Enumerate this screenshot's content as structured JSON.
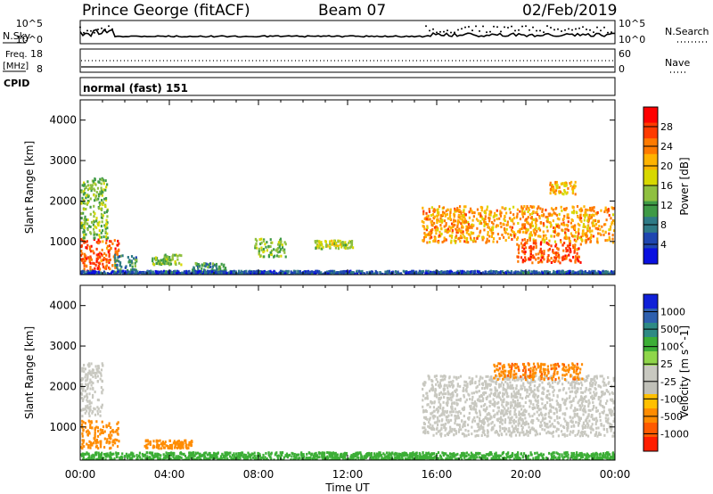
{
  "header": {
    "station": "Prince George (fitACF)",
    "beam": "Beam 07",
    "date": "02/Feb/2019"
  },
  "left_labels": {
    "nsky": "N.Sky",
    "freq_line1": "Freq.",
    "freq_line2": "[MHz]",
    "cpid": "CPID"
  },
  "right_labels": {
    "nsearch": "N.Search",
    "nave": "Nave"
  },
  "cpid_value": "normal (fast) 151",
  "noise_axis": {
    "top": "10^5",
    "bottom": "10^0"
  },
  "freq_axis": {
    "top": "18",
    "bottom": "8"
  },
  "nave_axis": {
    "top": "60",
    "bottom": "0"
  },
  "power_colorbar": {
    "title": "Power [dB]",
    "ticks": [
      "28",
      "24",
      "20",
      "16",
      "12",
      "8",
      "4"
    ],
    "colors": [
      "#ff0000",
      "#ff3a00",
      "#ff7a00",
      "#ffb300",
      "#d7d800",
      "#8fc040",
      "#3f9a46",
      "#2f7a86",
      "#1f46b0",
      "#0a10e0"
    ]
  },
  "velocity_colorbar": {
    "title": "Velocity [m s^-1]",
    "ticks": [
      "1000",
      "500",
      "100",
      "25",
      "-25",
      "-100",
      "-500",
      "-1000"
    ],
    "colors": [
      "#1020d8",
      "#2e5fae",
      "#2e8a84",
      "#3cae36",
      "#8fd64a",
      "#c8c8c0",
      "#c0c0b8",
      "#ffc000",
      "#ff8c00",
      "#ff5a00",
      "#ff1e00"
    ]
  },
  "chart_data": [
    {
      "type": "heatmap",
      "title": "Power",
      "ylabel": "Slant Range [km]",
      "ylim": [
        180,
        4500
      ],
      "yticks": [
        "4000",
        "3000",
        "2000",
        "1000"
      ],
      "xlim": [
        0,
        24
      ],
      "grid": false,
      "scatter_bands": [
        {
          "t0": 0.0,
          "t1": 1.7,
          "r0": 300,
          "r1": 1100,
          "level": 26
        },
        {
          "t0": 0.0,
          "t1": 1.2,
          "r0": 1100,
          "r1": 2600,
          "level": 14
        },
        {
          "t0": 1.5,
          "t1": 2.5,
          "r0": 250,
          "r1": 700,
          "level": 10
        },
        {
          "t0": 3.2,
          "t1": 4.5,
          "r0": 450,
          "r1": 700,
          "level": 14
        },
        {
          "t0": 5.0,
          "t1": 6.5,
          "r0": 250,
          "r1": 500,
          "level": 10
        },
        {
          "t0": 7.8,
          "t1": 9.2,
          "r0": 650,
          "r1": 1100,
          "level": 14
        },
        {
          "t0": 10.5,
          "t1": 12.2,
          "r0": 850,
          "r1": 1050,
          "level": 16
        },
        {
          "t0": 15.3,
          "t1": 24.0,
          "r0": 1000,
          "r1": 1900,
          "level": 22
        },
        {
          "t0": 19.5,
          "t1": 22.5,
          "r0": 500,
          "r1": 1000,
          "level": 26
        },
        {
          "t0": 21.0,
          "t1": 22.2,
          "r0": 2200,
          "r1": 2500,
          "level": 20
        },
        {
          "t0": 0.0,
          "t1": 24.0,
          "r0": 200,
          "r1": 300,
          "level": 6
        }
      ]
    },
    {
      "type": "heatmap",
      "title": "Velocity",
      "ylabel": "Slant Range [km]",
      "ylim": [
        180,
        4500
      ],
      "yticks": [
        "4000",
        "3000",
        "2000",
        "1000"
      ],
      "xlim": [
        0,
        24
      ],
      "xlabel": "Time UT",
      "xticks": [
        "00:00",
        "04:00",
        "08:00",
        "12:00",
        "16:00",
        "20:00",
        "00:00"
      ],
      "grid": false,
      "scatter_bands": [
        {
          "t0": 0.0,
          "t1": 1.7,
          "r0": 500,
          "r1": 1200,
          "level": -300
        },
        {
          "t0": 0.0,
          "t1": 1.0,
          "r0": 1300,
          "r1": 2600,
          "level": 0
        },
        {
          "t0": 2.8,
          "t1": 5.0,
          "r0": 500,
          "r1": 700,
          "level": -200
        },
        {
          "t0": 15.3,
          "t1": 24.0,
          "r0": 800,
          "r1": 2300,
          "level": 0
        },
        {
          "t0": 18.5,
          "t1": 22.5,
          "r0": 2200,
          "r1": 2600,
          "level": -400
        },
        {
          "t0": 0.0,
          "t1": 24.0,
          "r0": 200,
          "r1": 400,
          "level": 60
        }
      ]
    }
  ]
}
